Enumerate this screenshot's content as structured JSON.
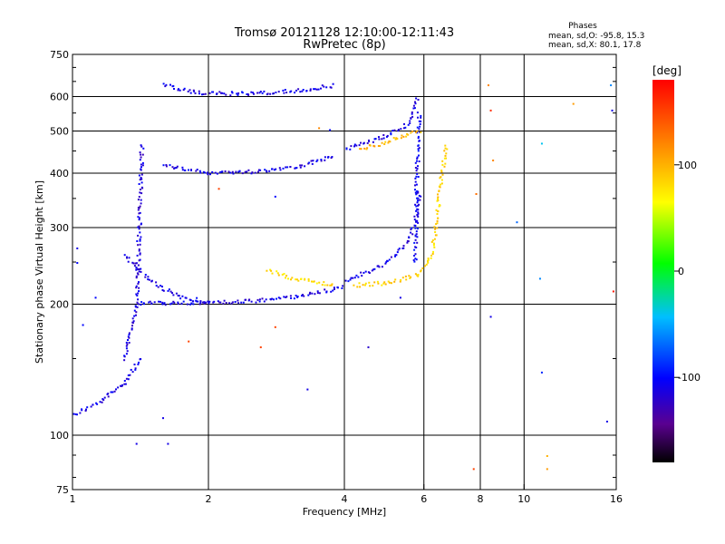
{
  "header": {
    "title_line1": "Tromsø 20121128 12:10:00-12:11:43",
    "title_line2": "RwPretec (8p)",
    "phases_label": "Phases",
    "phases_o": "mean, sd,O: -95.8, 15.3",
    "phases_x": "mean, sd,X: 80.1, 17.8"
  },
  "chart_data": {
    "type": "scatter",
    "title": "Tromsø 20121128 12:10:00-12:11:43",
    "subtitle": "RwPretec (8p)",
    "xlabel": "Frequency [MHz]",
    "ylabel": "Stationary phase Virtual Height [km]",
    "x_scale": "log",
    "y_scale": "log",
    "xlim": [
      1,
      16
    ],
    "ylim": [
      75,
      750
    ],
    "x_ticks": [
      1,
      2,
      4,
      6,
      8,
      10,
      16
    ],
    "y_ticks": [
      75,
      100,
      200,
      300,
      400,
      500,
      600,
      750
    ],
    "grid": true,
    "colorbar": {
      "label": "[deg]",
      "ticks": [
        100,
        0,
        -100
      ],
      "range": [
        -180,
        180
      ]
    },
    "traces": [
      {
        "name": "",
        "x": [
          1.0,
          1.15,
          1.3,
          1.42
        ],
        "y": [
          112,
          120,
          133,
          152
        ],
        "phase": -110
      },
      {
        "name": "",
        "x": [
          1.3,
          1.34,
          1.38,
          1.4,
          1.42
        ],
        "y": [
          150,
          175,
          200,
          300,
          470
        ],
        "phase": -115
      },
      {
        "name": "",
        "x": [
          1.3,
          1.4,
          1.55,
          1.75,
          2.0
        ],
        "y": [
          262,
          240,
          220,
          208,
          203
        ],
        "phase": -110
      },
      {
        "name": "",
        "x": [
          1.4,
          1.8,
          2.5,
          3.2,
          3.8,
          4.0
        ],
        "y": [
          202,
          202,
          204,
          210,
          218,
          222
        ],
        "phase": -110
      },
      {
        "name": "",
        "x": [
          1.58,
          1.8,
          2.0,
          2.5,
          3.2,
          3.8
        ],
        "y": [
          420,
          408,
          403,
          405,
          418,
          440
        ],
        "phase": -110
      },
      {
        "name": "",
        "x": [
          1.58,
          1.8,
          2.0,
          2.5,
          3.2,
          3.8
        ],
        "y": [
          640,
          620,
          612,
          613,
          622,
          640
        ],
        "phase": -110
      },
      {
        "name": "",
        "x": [
          4.0,
          4.5,
          5.0,
          5.4,
          5.7,
          5.85
        ],
        "y": [
          228,
          238,
          252,
          272,
          305,
          370
        ],
        "phase": -110
      },
      {
        "name": "",
        "x": [
          5.72,
          5.74,
          5.76,
          5.8,
          5.84
        ],
        "y": [
          250,
          300,
          380,
          460,
          560
        ],
        "phase": -105
      },
      {
        "name": "",
        "x": [
          4.0,
          4.5,
          5.0,
          5.5,
          5.8
        ],
        "y": [
          455,
          475,
          492,
          520,
          600
        ],
        "phase": -110
      },
      {
        "name": "",
        "x": [
          2.7,
          3.0,
          3.4,
          3.8
        ],
        "y": [
          240,
          232,
          226,
          222
        ],
        "phase": 80
      },
      {
        "name": "",
        "x": [
          4.2,
          5.0,
          5.8,
          6.2,
          6.35,
          6.5,
          6.7
        ],
        "y": [
          222,
          225,
          235,
          258,
          300,
          380,
          470
        ],
        "phase": 85
      },
      {
        "name": "",
        "x": [
          4.3,
          4.8,
          5.2,
          5.6,
          5.9
        ],
        "y": [
          455,
          470,
          485,
          495,
          505
        ],
        "phase": 100
      }
    ],
    "scattered_points": [
      {
        "x": 8.3,
        "y": 640,
        "phase": 120
      },
      {
        "x": 8.4,
        "y": 560,
        "phase": 160
      },
      {
        "x": 8.5,
        "y": 430,
        "phase": 120
      },
      {
        "x": 7.8,
        "y": 360,
        "phase": 130
      },
      {
        "x": 9.6,
        "y": 310,
        "phase": -70
      },
      {
        "x": 10.9,
        "y": 470,
        "phase": -40
      },
      {
        "x": 10.8,
        "y": 230,
        "phase": -60
      },
      {
        "x": 11.2,
        "y": 90,
        "phase": 100
      },
      {
        "x": 12.8,
        "y": 580,
        "phase": 110
      },
      {
        "x": 15.5,
        "y": 640,
        "phase": -60
      },
      {
        "x": 15.6,
        "y": 560,
        "phase": -110
      },
      {
        "x": 15.7,
        "y": 215,
        "phase": 170
      },
      {
        "x": 15.2,
        "y": 108,
        "phase": -110
      },
      {
        "x": 8.4,
        "y": 188,
        "phase": -110
      },
      {
        "x": 7.7,
        "y": 84,
        "phase": 150
      },
      {
        "x": 10.9,
        "y": 140,
        "phase": -90
      },
      {
        "x": 11.2,
        "y": 84,
        "phase": 110
      },
      {
        "x": 2.1,
        "y": 370,
        "phase": 150
      },
      {
        "x": 2.8,
        "y": 355,
        "phase": -100
      },
      {
        "x": 3.7,
        "y": 505,
        "phase": -100
      },
      {
        "x": 3.3,
        "y": 128,
        "phase": -110
      },
      {
        "x": 4.5,
        "y": 160,
        "phase": -120
      },
      {
        "x": 1.8,
        "y": 165,
        "phase": 150
      },
      {
        "x": 2.6,
        "y": 160,
        "phase": 150
      },
      {
        "x": 2.8,
        "y": 178,
        "phase": 150
      },
      {
        "x": 1.58,
        "y": 110,
        "phase": -110
      },
      {
        "x": 1.62,
        "y": 96,
        "phase": -110
      },
      {
        "x": 1.38,
        "y": 96,
        "phase": -110
      },
      {
        "x": 1.02,
        "y": 270,
        "phase": -110
      },
      {
        "x": 1.05,
        "y": 180,
        "phase": -100
      },
      {
        "x": 1.02,
        "y": 250,
        "phase": -100
      },
      {
        "x": 1.12,
        "y": 208,
        "phase": -100
      },
      {
        "x": 3.5,
        "y": 510,
        "phase": 120
      },
      {
        "x": 5.3,
        "y": 208,
        "phase": -110
      }
    ]
  }
}
